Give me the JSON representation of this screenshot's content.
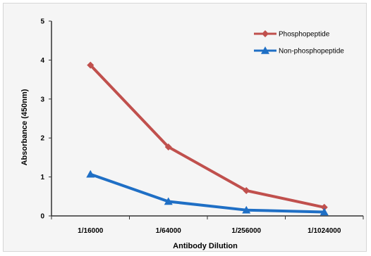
{
  "chart_data": {
    "type": "line",
    "categories": [
      "1/16000",
      "1/64000",
      "1/256000",
      "1/1024000"
    ],
    "series": [
      {
        "name": "Phosphopeptide",
        "values": [
          3.87,
          1.77,
          0.65,
          0.22
        ],
        "color": "#c0504d",
        "marker": "diamond"
      },
      {
        "name": "Non-phosphopeptide",
        "values": [
          1.07,
          0.37,
          0.15,
          0.1
        ],
        "color": "#1f6fc5",
        "marker": "triangle"
      }
    ],
    "title": "",
    "xlabel": "Antibody Dilution",
    "ylabel": "Absorbance (450nm)",
    "ylim": [
      0,
      5
    ],
    "yticks": [
      "0",
      "1",
      "2",
      "3",
      "4",
      "5"
    ],
    "grid": false,
    "legend_position": "top-right"
  }
}
